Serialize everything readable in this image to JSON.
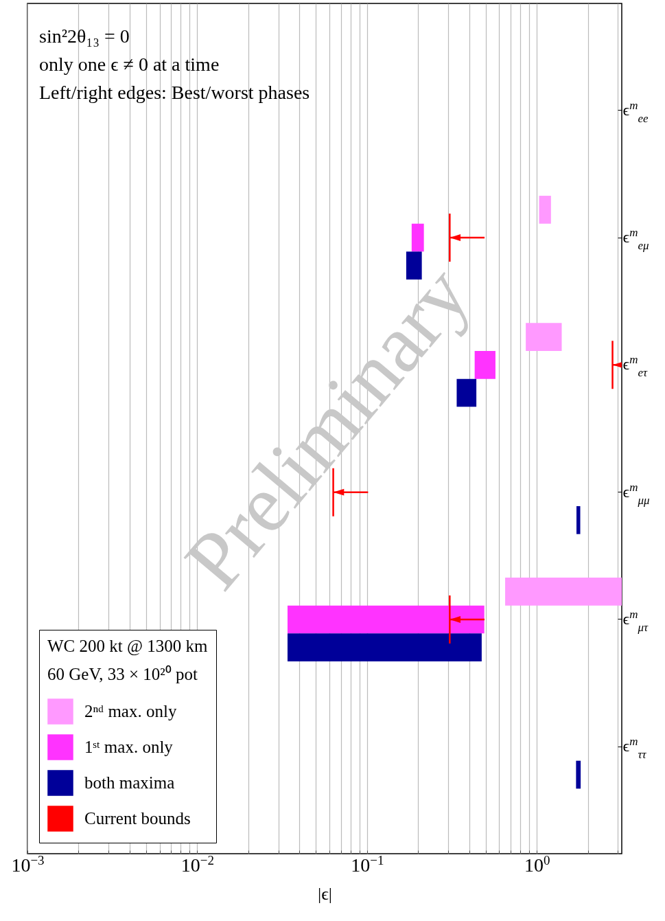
{
  "chart_data": {
    "type": "bar",
    "orientation": "horizontal",
    "xlabel": "|ϵ|",
    "legend_title": "WC 200 kt @ 1300 km\n60 GeV, 33 × 10²⁰ pot",
    "legend": "bottom left",
    "grid": "x",
    "log": "x",
    "categories": [
      "ϵ$^{m}$$_{ee}$",
      "ϵ$^{m}$$_{eμ}$",
      "ϵ$^{m}$$_{eτ}$",
      "ϵ$^{m}$$_{μμ}$",
      "ϵ$^{m}$$_{μτ}$",
      "ϵ$^{m}$$_{ττ}$"
    ],
    "xlim": [
      0.001,
      3.16
    ],
    "xticks": [
      {
        "value": 0.001,
        "label": "10$^{−3}$"
      },
      {
        "value": 0.002,
        "label": null
      },
      {
        "value": 0.003,
        "label": null
      },
      {
        "value": 0.004,
        "label": null
      },
      {
        "value": 0.005,
        "label": null
      },
      {
        "value": 0.006,
        "label": null
      },
      {
        "value": 0.007,
        "label": null
      },
      {
        "value": 0.008,
        "label": null
      },
      {
        "value": 0.009,
        "label": null
      },
      {
        "value": 0.01,
        "label": "10$^{−2}$"
      },
      {
        "value": 0.02,
        "label": null
      },
      {
        "value": 0.03,
        "label": null
      },
      {
        "value": 0.04,
        "label": null
      },
      {
        "value": 0.05,
        "label": null
      },
      {
        "value": 0.06,
        "label": null
      },
      {
        "value": 0.07,
        "label": null
      },
      {
        "value": 0.08,
        "label": null
      },
      {
        "value": 0.09,
        "label": null
      },
      {
        "value": 0.1,
        "label": "10$^{−1}$"
      },
      {
        "value": 0.2,
        "label": null
      },
      {
        "value": 0.3,
        "label": null
      },
      {
        "value": 0.4,
        "label": null
      },
      {
        "value": 0.5,
        "label": null
      },
      {
        "value": 0.6,
        "label": null
      },
      {
        "value": 0.7,
        "label": null
      },
      {
        "value": 0.8,
        "label": null
      },
      {
        "value": 0.9,
        "label": null
      },
      {
        "value": 1,
        "label": "10$^{0}$"
      },
      {
        "value": 2,
        "label": null
      },
      {
        "value": 3,
        "label": null
      }
    ],
    "series": [
      {
        "name": "2ⁿᵈ max. only",
        "color": "#ff99ff",
        "base": [
          null,
          1.03,
          0.86,
          null,
          0.65,
          null
        ],
        "values": [
          null,
          0.18,
          0.54,
          null,
          2.51,
          null
        ]
      },
      {
        "name": "1ˢᵗ max. only",
        "color": "#ff33ff",
        "base": [
          null,
          0.183,
          0.43,
          null,
          0.034,
          null
        ],
        "values": [
          null,
          0.033,
          0.14,
          null,
          0.456,
          null
        ]
      },
      {
        "name": "both maxima",
        "color": "#000099",
        "base": [
          null,
          0.17,
          0.337,
          1.71,
          0.034,
          1.7
        ],
        "values": [
          null,
          0.04,
          0.103,
          0.09,
          0.439,
          0.11
        ]
      },
      {
        "name": "Current bounds",
        "type": "scatter",
        "color": "#ff0000",
        "values": [
          null,
          0.33,
          3.0,
          0.068,
          0.33,
          null
        ]
      }
    ],
    "annotations": [
      "sin²2θ₁₃ = 0",
      "only one ϵ ≠ 0 at a time",
      "Left/right edges: Best/worst phases",
      "Preliminary"
    ]
  }
}
